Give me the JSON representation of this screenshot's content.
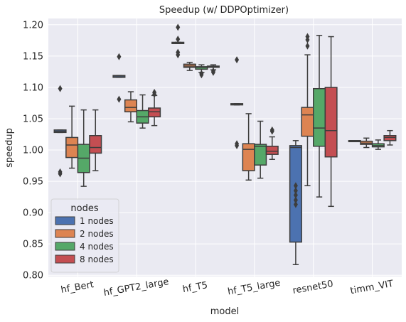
{
  "chart_data": {
    "type": "boxplot",
    "title": "Speedup (w/ DDPOptimizer)",
    "xlabel": "model",
    "ylabel": "speedup",
    "ylim": [
      0.798,
      1.21
    ],
    "yticks": [
      "0.80",
      "0.85",
      "0.90",
      "0.95",
      "1.00",
      "1.05",
      "1.10",
      "1.15",
      "1.20"
    ],
    "grid": true,
    "legend": {
      "title": "nodes",
      "placement": "lower-left"
    },
    "categories": [
      "hf_Bert",
      "hf_GPT2_large",
      "hf_T5",
      "hf_T5_large",
      "resnet50",
      "timm_VIT"
    ],
    "series": [
      {
        "name": "1 nodes",
        "color": "#4c72b0",
        "boxes": [
          {
            "q1": 1.028,
            "median": 1.03,
            "q3": 1.032,
            "whisker_low": 1.028,
            "whisker_high": 1.032,
            "outliers": [
              1.098,
              0.965,
              0.962
            ]
          },
          {
            "q1": 1.116,
            "median": 1.118,
            "q3": 1.119,
            "whisker_low": 1.116,
            "whisker_high": 1.119,
            "outliers": [
              1.149,
              1.081
            ]
          },
          {
            "q1": 1.17,
            "median": 1.171,
            "q3": 1.172,
            "whisker_low": 1.17,
            "whisker_high": 1.172,
            "outliers": [
              1.196,
              1.177,
              1.156,
              1.152
            ]
          },
          {
            "q1": 1.072,
            "median": 1.073,
            "q3": 1.074,
            "whisker_low": 1.072,
            "whisker_high": 1.074,
            "outliers": [
              1.144,
              1.01,
              1.007
            ]
          },
          {
            "q1": 0.853,
            "median": 1.004,
            "q3": 1.007,
            "whisker_low": 0.817,
            "whisker_high": 1.015,
            "outliers": [
              0.943,
              0.935,
              0.928,
              0.92,
              0.913
            ]
          },
          {
            "q1": 1.014,
            "median": 1.015,
            "q3": 1.015,
            "whisker_low": 1.014,
            "whisker_high": 1.015,
            "outliers": []
          }
        ]
      },
      {
        "name": "2 nodes",
        "color": "#dd8452",
        "boxes": [
          {
            "q1": 0.988,
            "median": 1.008,
            "q3": 1.02,
            "whisker_low": 0.971,
            "whisker_high": 1.07,
            "outliers": []
          },
          {
            "q1": 1.061,
            "median": 1.068,
            "q3": 1.08,
            "whisker_low": 1.045,
            "whisker_high": 1.093,
            "outliers": []
          },
          {
            "q1": 1.132,
            "median": 1.134,
            "q3": 1.137,
            "whisker_low": 1.127,
            "whisker_high": 1.14,
            "outliers": []
          },
          {
            "q1": 0.967,
            "median": 1.001,
            "q3": 1.01,
            "whisker_low": 0.952,
            "whisker_high": 1.058,
            "outliers": []
          },
          {
            "q1": 1.022,
            "median": 1.056,
            "q3": 1.068,
            "whisker_low": 0.943,
            "whisker_high": 1.152,
            "outliers": [
              1.181,
              1.176,
              1.166
            ]
          },
          {
            "q1": 1.009,
            "median": 1.011,
            "q3": 1.014,
            "whisker_low": 1.004,
            "whisker_high": 1.019,
            "outliers": []
          }
        ]
      },
      {
        "name": "4 nodes",
        "color": "#55a868",
        "boxes": [
          {
            "q1": 0.964,
            "median": 0.987,
            "q3": 1.009,
            "whisker_low": 0.942,
            "whisker_high": 1.064,
            "outliers": []
          },
          {
            "q1": 1.043,
            "median": 1.053,
            "q3": 1.063,
            "whisker_low": 1.035,
            "whisker_high": 1.088,
            "outliers": []
          },
          {
            "q1": 1.129,
            "median": 1.132,
            "q3": 1.133,
            "whisker_low": 1.124,
            "whisker_high": 1.136,
            "outliers": [
              1.122,
              1.12
            ]
          },
          {
            "q1": 0.976,
            "median": 1.006,
            "q3": 1.009,
            "whisker_low": 0.955,
            "whisker_high": 1.046,
            "outliers": []
          },
          {
            "q1": 1.006,
            "median": 1.035,
            "q3": 1.098,
            "whisker_low": 0.925,
            "whisker_high": 1.183,
            "outliers": []
          },
          {
            "q1": 1.005,
            "median": 1.007,
            "q3": 1.01,
            "whisker_low": 1.001,
            "whisker_high": 1.016,
            "outliers": []
          }
        ]
      },
      {
        "name": "8 nodes",
        "color": "#c44e52",
        "boxes": [
          {
            "q1": 0.995,
            "median": 1.004,
            "q3": 1.023,
            "whisker_low": 0.967,
            "whisker_high": 1.064,
            "outliers": []
          },
          {
            "q1": 1.053,
            "median": 1.061,
            "q3": 1.067,
            "whisker_low": 1.039,
            "whisker_high": 1.087,
            "outliers": [
              1.092,
              1.089
            ]
          },
          {
            "q1": 1.132,
            "median": 1.133,
            "q3": 1.134,
            "whisker_low": 1.128,
            "whisker_high": 1.136,
            "outliers": [
              1.126,
              1.124
            ]
          },
          {
            "q1": 0.993,
            "median": 0.998,
            "q3": 1.006,
            "whisker_low": 0.985,
            "whisker_high": 1.021,
            "outliers": [
              1.032,
              1.03
            ]
          },
          {
            "q1": 0.989,
            "median": 1.031,
            "q3": 1.1,
            "whisker_low": 0.91,
            "whisker_high": 1.181,
            "outliers": []
          },
          {
            "q1": 1.015,
            "median": 1.02,
            "q3": 1.023,
            "whisker_low": 1.008,
            "whisker_high": 1.031,
            "outliers": []
          }
        ]
      }
    ]
  }
}
